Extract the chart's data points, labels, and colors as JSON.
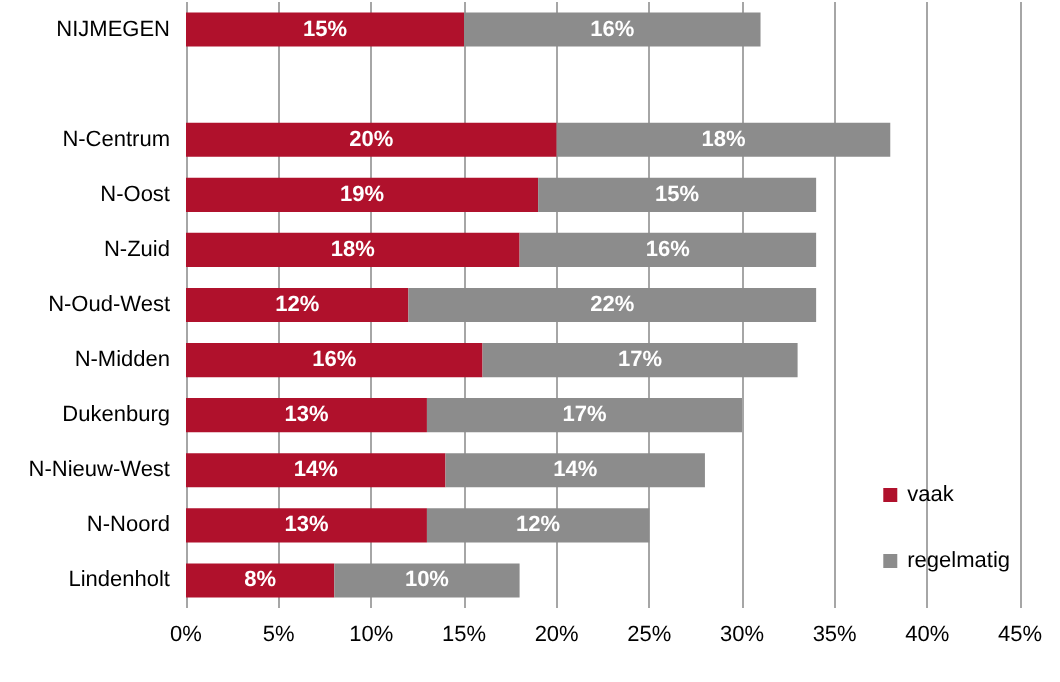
{
  "chart_data": {
    "type": "bar",
    "orientation": "horizontal",
    "stacked": true,
    "categories": [
      "NIJMEGEN",
      null,
      "N-Centrum",
      "N-Oost",
      "N-Zuid",
      "N-Oud-West",
      "N-Midden",
      "Dukenburg",
      "N-Nieuw-West",
      "N-Noord",
      "Lindenholt"
    ],
    "series": [
      {
        "name": "vaak",
        "color": "#b0112c",
        "values": [
          15,
          null,
          20,
          19,
          18,
          12,
          16,
          13,
          14,
          13,
          8
        ],
        "value_labels": [
          "15%",
          null,
          "20%",
          "19%",
          "18%",
          "12%",
          "16%",
          "13%",
          "14%",
          "13%",
          "8%"
        ]
      },
      {
        "name": "regelmatig",
        "color": "#8c8c8c",
        "values": [
          16,
          null,
          18,
          15,
          16,
          22,
          17,
          17,
          14,
          12,
          10
        ],
        "value_labels": [
          "16%",
          null,
          "18%",
          "15%",
          "16%",
          "22%",
          "17%",
          "17%",
          "14%",
          "12%",
          "10%"
        ]
      }
    ],
    "xlim": [
      0,
      45
    ],
    "xticks": [
      {
        "value": 0,
        "label": "0%"
      },
      {
        "value": 5,
        "label": "5%"
      },
      {
        "value": 10,
        "label": "10%"
      },
      {
        "value": 15,
        "label": "15%"
      },
      {
        "value": 20,
        "label": "20%"
      },
      {
        "value": 25,
        "label": "25%"
      },
      {
        "value": 30,
        "label": "30%"
      },
      {
        "value": 35,
        "label": "35%"
      },
      {
        "value": 40,
        "label": "40%"
      },
      {
        "value": 45,
        "label": "45%"
      }
    ],
    "grid": "x",
    "legend": "right"
  }
}
